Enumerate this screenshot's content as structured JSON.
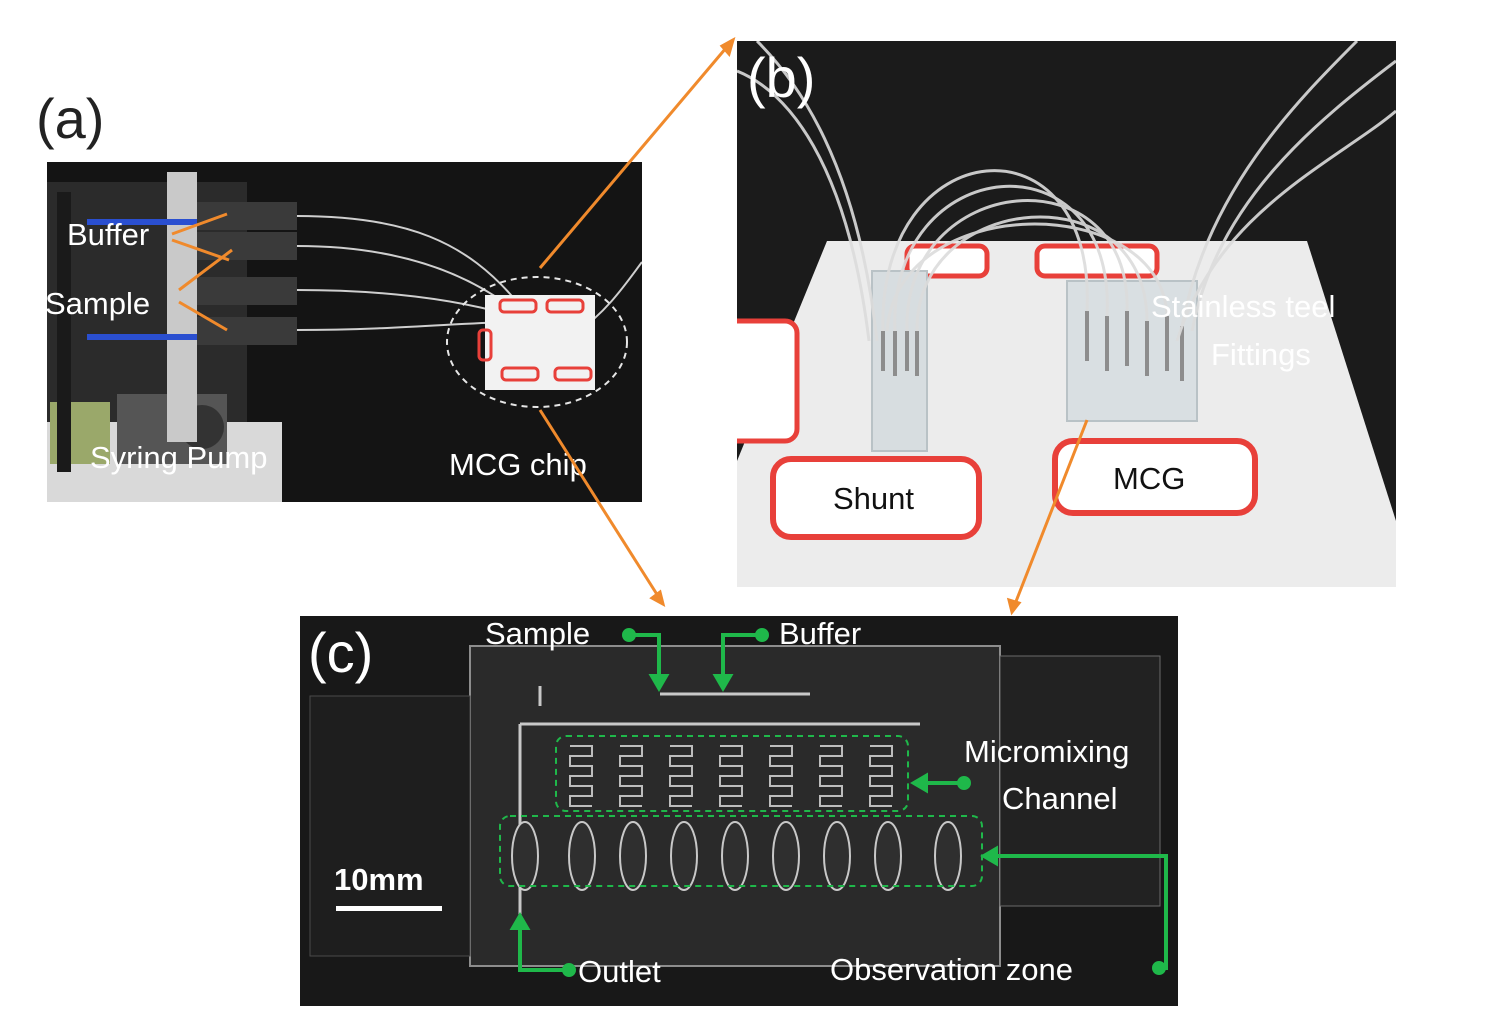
{
  "panels": {
    "a": {
      "letter": "(a)",
      "labels": {
        "buffer": "Buffer",
        "sample": "Sample",
        "syringe_pump": "Syring Pump",
        "mcg_chip": "MCG chip"
      }
    },
    "b": {
      "letter": "(b)",
      "labels": {
        "fittings_line1": "Stainless teel",
        "fittings_line2": "Fittings",
        "shunt": "Shunt",
        "mcg": "MCG"
      }
    },
    "c": {
      "letter": "(c)",
      "labels": {
        "sample": "Sample",
        "buffer": "Buffer",
        "micromixing_line1": "Micromixing",
        "micromixing_line2": "Channel",
        "scale": "10mm",
        "outlet": "Outlet",
        "observation_zone": "Observation zone"
      }
    }
  },
  "colors": {
    "callout_arrow": "#f08a2c",
    "annotation_green": "#1fb84a",
    "label_red": "#e8403a"
  }
}
